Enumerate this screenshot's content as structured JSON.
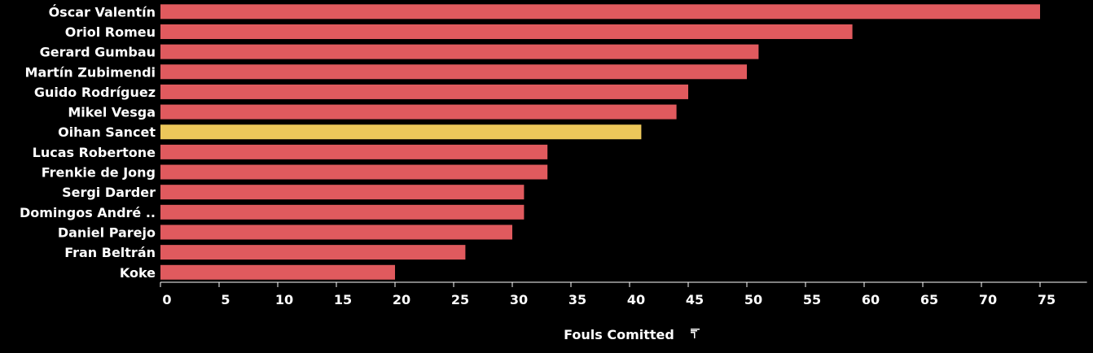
{
  "chart_data": {
    "type": "bar",
    "orientation": "horizontal",
    "categories": [
      "Óscar Valentín",
      "Oriol Romeu",
      "Gerard Gumbau",
      "Martín Zubimendi",
      "Guido Rodríguez",
      "Mikel Vesga",
      "Oihan Sancet",
      "Lucas Robertone",
      "Frenkie de Jong",
      "Sergi Darder",
      "Domingos André ..",
      "Daniel Parejo",
      "Fran Beltrán",
      "Koke"
    ],
    "values": [
      75,
      59,
      51,
      50,
      45,
      44,
      41,
      33,
      33,
      31,
      31,
      30,
      26,
      20
    ],
    "highlight_category": "Oihan Sancet",
    "xlabel": "Fouls Comitted",
    "xlim": [
      0,
      79
    ],
    "xticks": [
      0,
      5,
      10,
      15,
      20,
      25,
      30,
      35,
      40,
      45,
      50,
      55,
      60,
      65,
      70,
      75
    ],
    "sort_icon": "sort-descending-icon",
    "colors": {
      "bar": "#e05a5e",
      "highlight": "#ecc75a",
      "background": "#000000",
      "text": "#ffffff"
    }
  }
}
